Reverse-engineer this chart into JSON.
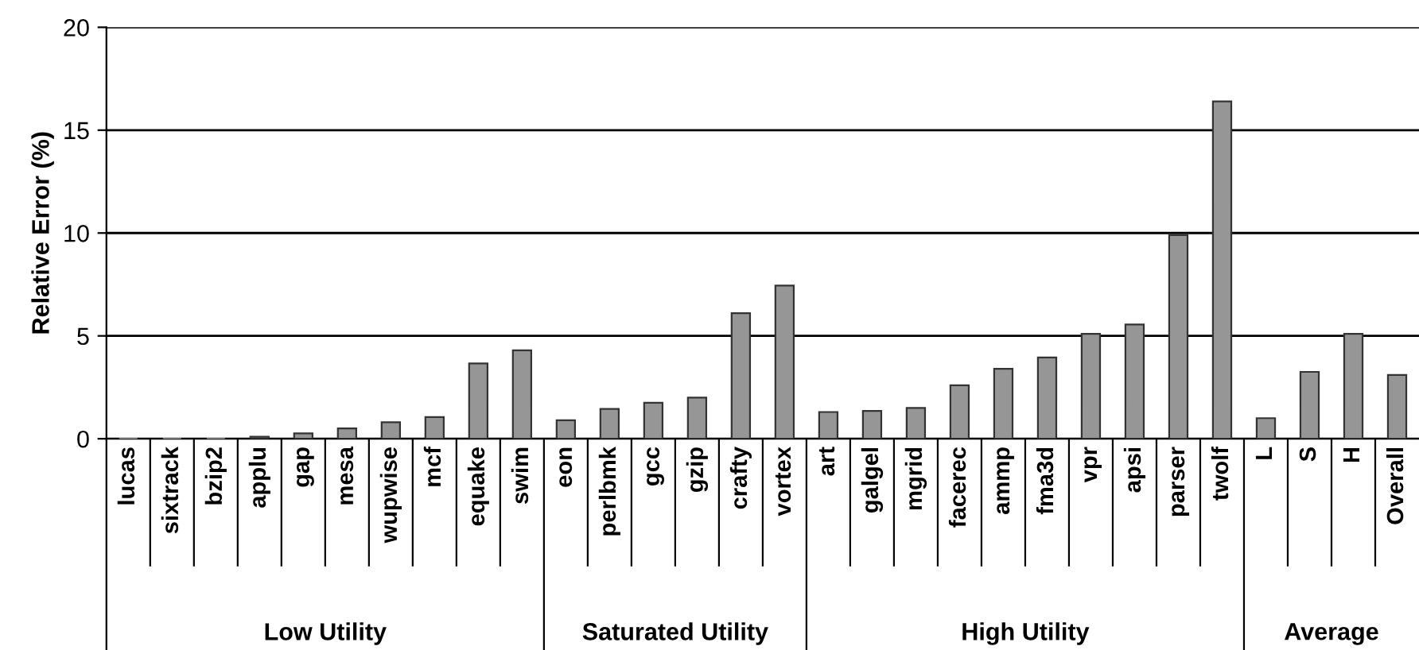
{
  "chart_data": {
    "type": "bar",
    "ylabel": "Relative Error (%)",
    "categories": [
      "lucas",
      "sixtrack",
      "bzip2",
      "applu",
      "gap",
      "mesa",
      "wupwise",
      "mcf",
      "equake",
      "swim",
      "eon",
      "perlbmk",
      "gcc",
      "gzip",
      "crafty",
      "vortex",
      "art",
      "galgel",
      "mgrid",
      "facerec",
      "ammp",
      "fma3d",
      "vpr",
      "apsi",
      "parser",
      "twolf",
      "L",
      "S",
      "H",
      "Overall"
    ],
    "values": [
      0,
      0,
      0,
      0.1,
      0.26,
      0.5,
      0.8,
      1.05,
      3.66,
      4.3,
      0.9,
      1.45,
      1.75,
      2.0,
      6.1,
      7.45,
      1.3,
      1.35,
      1.5,
      2.6,
      3.4,
      3.95,
      5.1,
      5.55,
      9.9,
      16.4,
      1.0,
      3.25,
      5.1,
      3.1
    ],
    "color": "#969696",
    "ylim": [
      0,
      20
    ],
    "yticks": [
      0,
      5,
      10,
      15,
      20
    ],
    "grid": "y",
    "annotations": [
      "Low Utility",
      "Saturated Utility",
      "High Utility",
      "Average"
    ]
  }
}
